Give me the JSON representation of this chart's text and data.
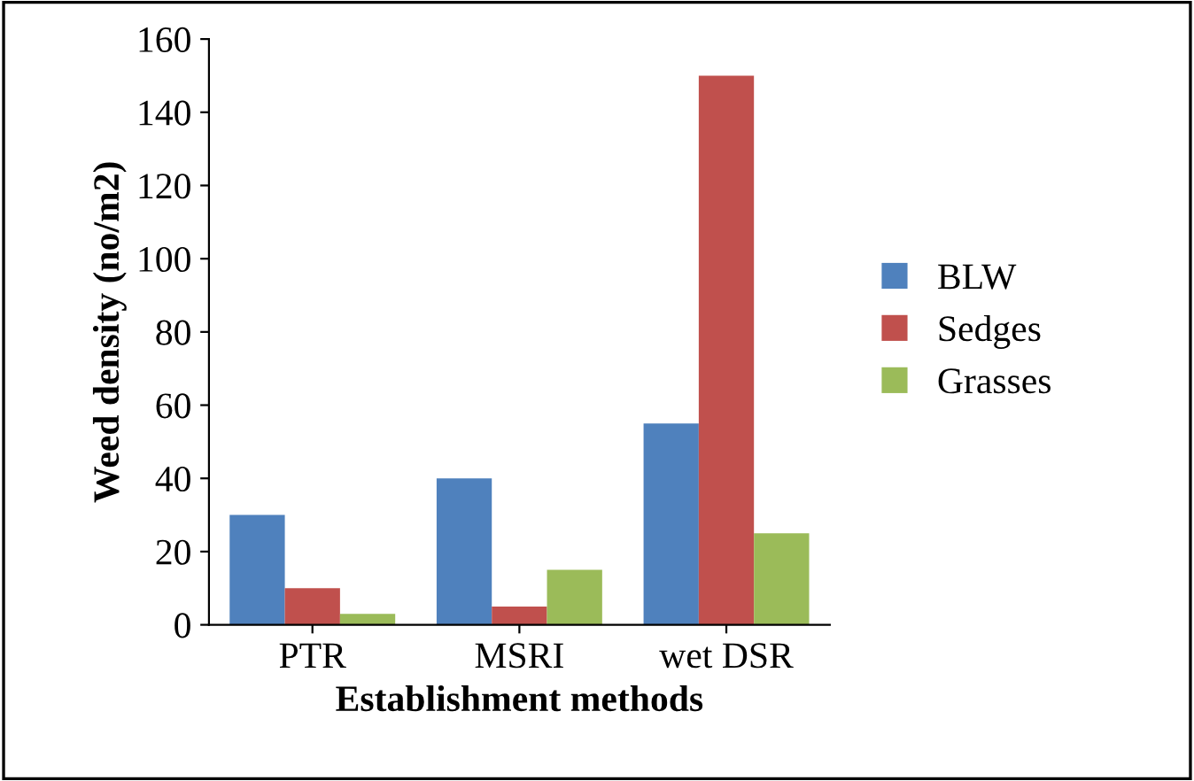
{
  "chart_data": {
    "type": "bar",
    "xlabel": "Establishment methods",
    "ylabel": "Weed density (no/m2)",
    "categories": [
      "PTR",
      "MSRI",
      "wet DSR"
    ],
    "series": [
      {
        "name": "BLW",
        "color": "#4f81bd",
        "values": [
          30,
          40,
          55
        ]
      },
      {
        "name": "Sedges",
        "color": "#c0504d",
        "values": [
          10,
          5,
          150
        ]
      },
      {
        "name": "Grasses",
        "color": "#9bbb59",
        "values": [
          3,
          15,
          25
        ]
      }
    ],
    "ylim": [
      0,
      160
    ],
    "yticks": [
      0,
      20,
      40,
      60,
      80,
      100,
      120,
      140,
      160
    ],
    "grid": false,
    "legend": "right"
  }
}
